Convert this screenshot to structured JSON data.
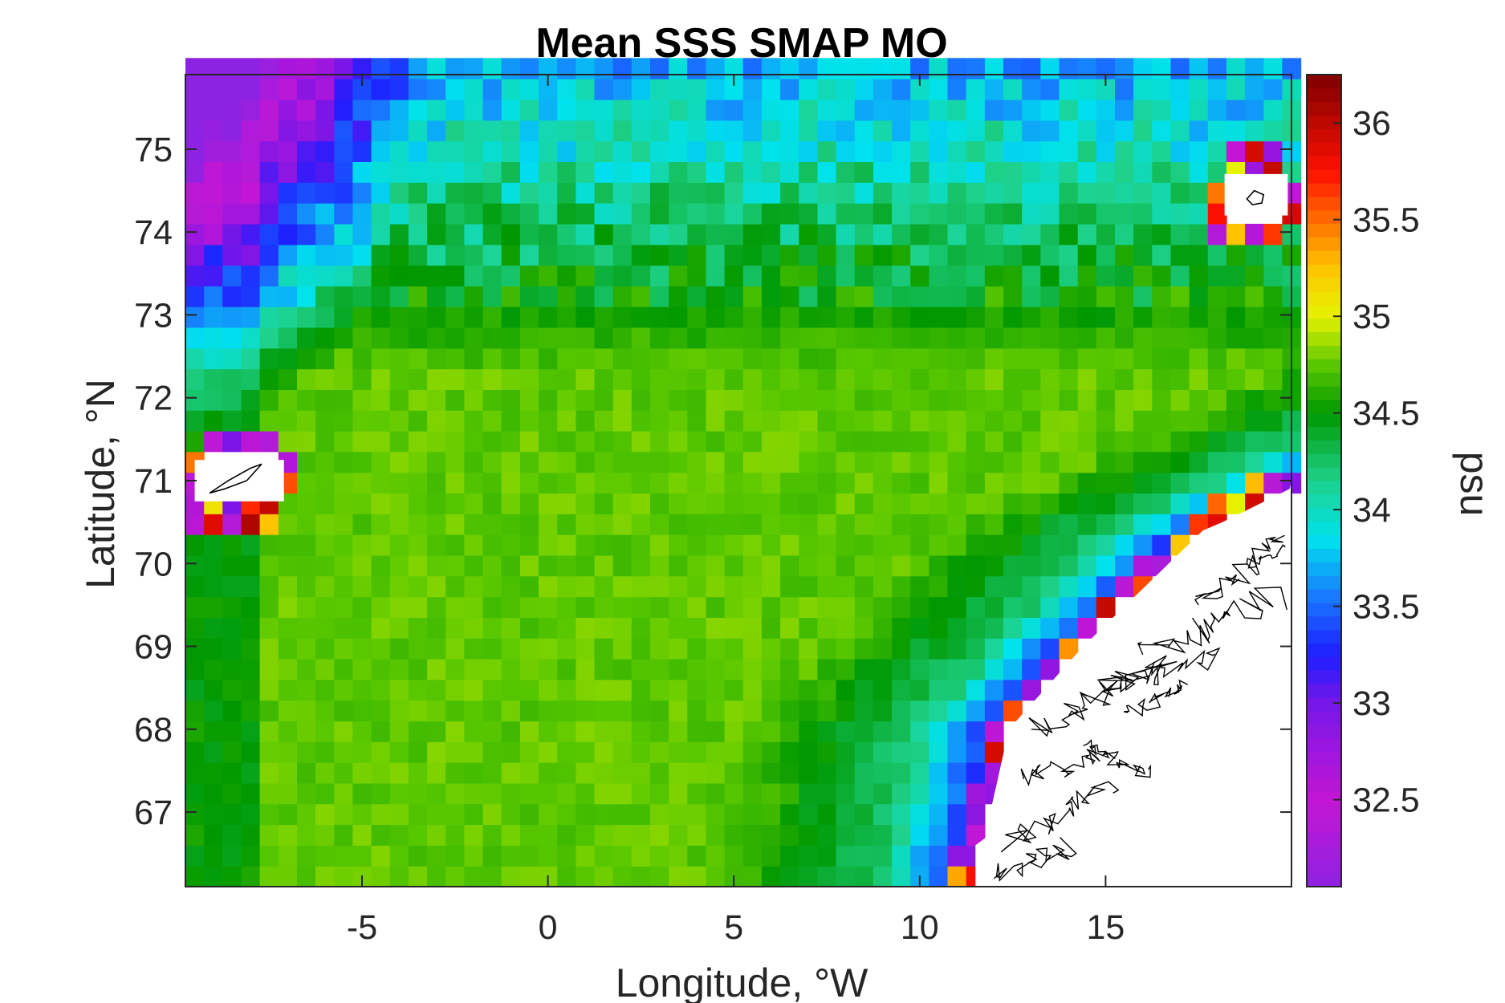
{
  "chart_data": {
    "type": "heatmap",
    "title": "Mean SSS SMAP MO",
    "xlabel": "Longitude, °W",
    "ylabel": "Latitude, °N",
    "xlim": [
      -9.75,
      20
    ],
    "ylim": [
      66.1,
      75.9
    ],
    "x_ticks": [
      -5,
      0,
      5,
      10,
      15
    ],
    "x_tick_labels": [
      "-5",
      "0",
      "5",
      "10",
      "15"
    ],
    "y_ticks": [
      67,
      68,
      69,
      70,
      71,
      72,
      73,
      74,
      75
    ],
    "y_tick_labels": [
      "67",
      "68",
      "69",
      "70",
      "71",
      "72",
      "73",
      "74",
      "75"
    ],
    "grid": "off",
    "colorbar": {
      "label": "psu",
      "range": [
        32.05,
        36.25
      ],
      "ticks": [
        32.5,
        33,
        33.5,
        34,
        34.5,
        35,
        35.5,
        36
      ],
      "tick_labels": [
        "32.5",
        "33",
        "33.5",
        "34",
        "34.5",
        "35",
        "35.5",
        "36"
      ],
      "colormap": "custom rainbow (violet-blue-cyan-green-yellow-red-darkred)"
    },
    "grid_resolution": {
      "dlon": 0.5,
      "dlat": 0.25
    },
    "field_description_values": {
      "central_basin_mean": 34.75,
      "northwest_fresh_minimum": 32.2,
      "norwegian_coastal_current_min": 33.2,
      "coastal_salty_pixels_max": 36.0
    },
    "land_masks": [
      {
        "name": "Jan Mayen",
        "lon": -8.2,
        "lat": 71.0
      },
      {
        "name": "Bear Island",
        "lon": 19.0,
        "lat": 74.45
      },
      {
        "name": "Norwegian coast",
        "lon": 16,
        "lat": 68.5
      }
    ]
  },
  "colors": {
    "axis": "#262626",
    "land": "#ffffff",
    "coastline": "#000000"
  }
}
